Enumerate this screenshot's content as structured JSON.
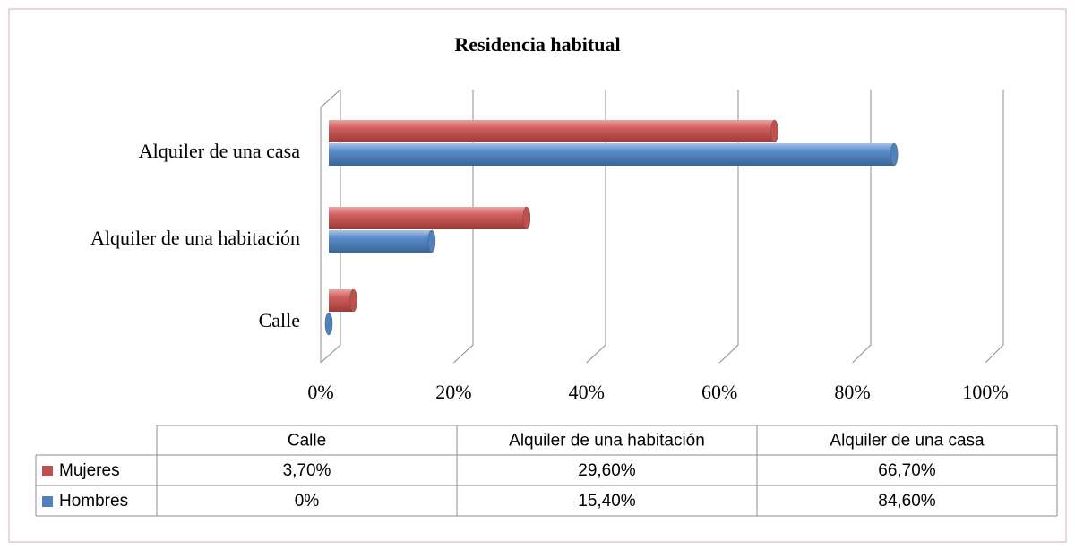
{
  "chart_data": {
    "type": "bar",
    "orientation": "horizontal",
    "title": "Residencia habitual",
    "categories": [
      "Calle",
      "Alquiler de una habitación",
      "Alquiler de una casa"
    ],
    "series": [
      {
        "name": "Mujeres",
        "color": "#c0504d",
        "values": [
          3.7,
          29.6,
          66.7
        ],
        "value_labels": [
          "3,70%",
          "29,60%",
          "66,70%"
        ]
      },
      {
        "name": "Hombres",
        "color": "#4f81bd",
        "values": [
          0,
          15.4,
          84.6
        ],
        "value_labels": [
          "0%",
          "15,40%",
          "84,60%"
        ]
      }
    ],
    "xlim": [
      0,
      100
    ],
    "xticks": [
      {
        "value": 0,
        "label": "0%"
      },
      {
        "value": 20,
        "label": "20%"
      },
      {
        "value": 40,
        "label": "40%"
      },
      {
        "value": 60,
        "label": "60%"
      },
      {
        "value": 80,
        "label": "80%"
      },
      {
        "value": 100,
        "label": "100%"
      }
    ],
    "grid": true,
    "data_table": true
  }
}
